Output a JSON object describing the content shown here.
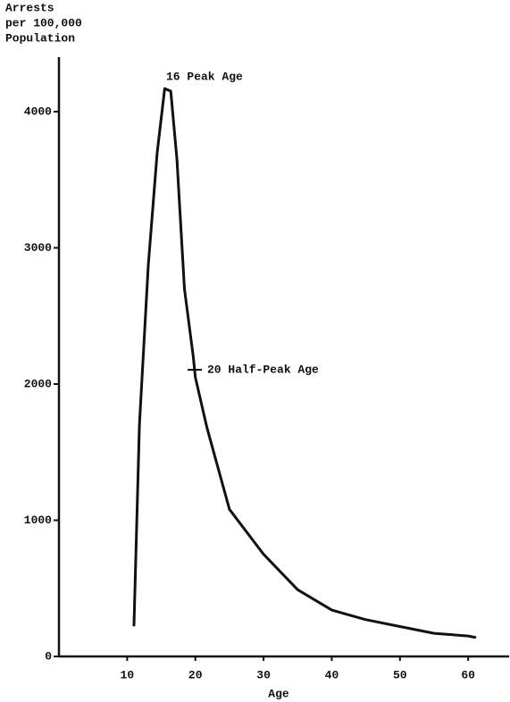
{
  "chart_data": {
    "type": "line",
    "ylabel": [
      "Arrests",
      "per 100,000",
      "Population"
    ],
    "xlabel": "Age",
    "annotations": [
      "16  Peak Age",
      "20  Half-Peak Age"
    ],
    "x": [
      11,
      11.8,
      13.1,
      14.4,
      15.5,
      16.4,
      17.3,
      18.4,
      19.7,
      20,
      21.7,
      25,
      30,
      35,
      40,
      45,
      50,
      55,
      60,
      61
    ],
    "values": [
      230,
      1700,
      2870,
      3700,
      4170,
      4150,
      3650,
      2700,
      2200,
      2050,
      1680,
      1080,
      750,
      490,
      340,
      270,
      220,
      170,
      150,
      140
    ],
    "color": "#111111",
    "xlim": [
      0,
      66
    ],
    "xticks": [
      10,
      20,
      30,
      40,
      50,
      60
    ],
    "ylim": [
      0,
      4400
    ],
    "yticks": [
      0,
      1000,
      2000,
      3000,
      4000
    ]
  }
}
